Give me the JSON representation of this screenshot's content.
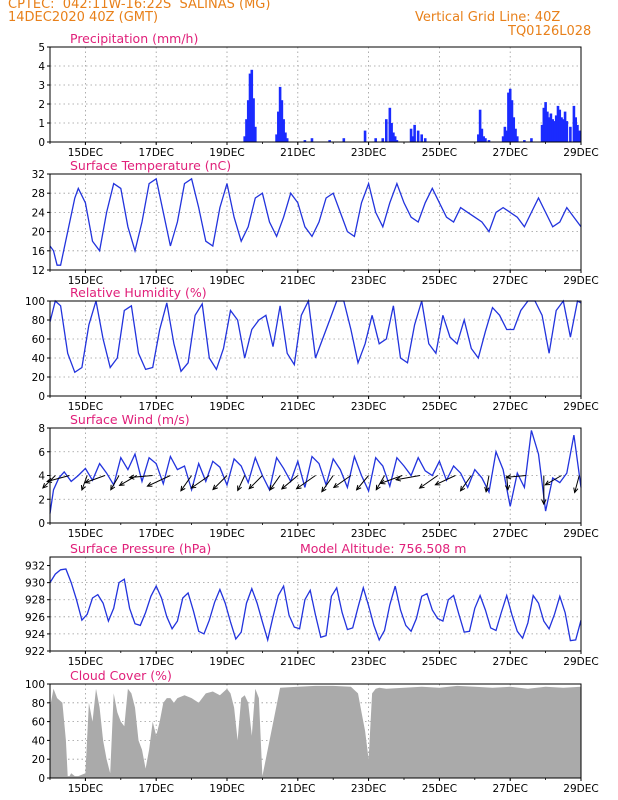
{
  "header": {
    "station": "CPTEC:  042:11W-16:22S  SALINAS (MG)",
    "date": "14DEC2020 40Z (GMT)",
    "grid_note": "Vertical Grid Line: 40Z",
    "model_id": "TQ0126L028"
  },
  "colors": {
    "line": "#2233dd",
    "bars": "#1a2bff",
    "cloud": "#aaaaaa",
    "title": "#e0207a",
    "header": "#e8801a"
  },
  "x_ticks": [
    "15DEC",
    "17DEC",
    "19DEC",
    "21DEC",
    "23DEC",
    "25DEC",
    "27DEC",
    "29DEC"
  ],
  "chart_data": [
    {
      "id": "precip",
      "type": "bar",
      "title": "Precipitation (mm/h)",
      "ylim": [
        0,
        5
      ],
      "yticks": [
        "0",
        "1",
        "2",
        "3",
        "4",
        "5"
      ],
      "xlim": [
        14,
        29
      ],
      "x": [
        19.5,
        19.55,
        19.6,
        19.65,
        19.7,
        19.75,
        19.8,
        20.4,
        20.45,
        20.5,
        20.55,
        20.6,
        20.65,
        20.7,
        21.2,
        21.4,
        21.9,
        22.3,
        22.9,
        23.2,
        23.4,
        23.5,
        23.6,
        23.65,
        23.7,
        23.75,
        23.8,
        24.2,
        24.25,
        24.3,
        24.4,
        24.5,
        24.6,
        26.1,
        26.15,
        26.2,
        26.25,
        26.3,
        26.4,
        26.8,
        26.85,
        26.9,
        26.95,
        27.0,
        27.05,
        27.1,
        27.15,
        27.2,
        27.4,
        27.6,
        27.9,
        27.95,
        28.0,
        28.05,
        28.1,
        28.15,
        28.2,
        28.25,
        28.3,
        28.35,
        28.4,
        28.45,
        28.5,
        28.55,
        28.6,
        28.7,
        28.8,
        28.85,
        28.9,
        28.95
      ],
      "values": [
        0.3,
        1.2,
        2.2,
        3.6,
        3.8,
        2.3,
        0.8,
        0.4,
        1.6,
        2.9,
        2.2,
        1.2,
        0.5,
        0.2,
        0.1,
        0.2,
        0.1,
        0.2,
        0.6,
        0.2,
        0.2,
        1.2,
        1.8,
        1.0,
        0.5,
        0.3,
        0.1,
        0.7,
        0.3,
        0.9,
        0.6,
        0.4,
        0.2,
        0.4,
        1.7,
        0.7,
        0.3,
        0.2,
        0.1,
        0.3,
        0.8,
        0.6,
        2.6,
        2.8,
        2.2,
        1.3,
        0.7,
        0.3,
        0.1,
        0.2,
        0.9,
        1.8,
        2.1,
        1.6,
        1.3,
        1.5,
        1.2,
        1.1,
        1.4,
        1.9,
        1.7,
        1.3,
        1.2,
        1.6,
        1.1,
        0.8,
        1.9,
        1.3,
        0.9,
        0.6
      ]
    },
    {
      "id": "temp",
      "type": "line",
      "title": "Surface Temperature (nC)",
      "ylim": [
        12,
        32
      ],
      "yticks": [
        "12",
        "16",
        "20",
        "24",
        "28",
        "32"
      ],
      "xlim": [
        14,
        29
      ],
      "x": [
        14.0,
        14.1,
        14.2,
        14.3,
        14.5,
        14.7,
        14.8,
        15.0,
        15.2,
        15.4,
        15.6,
        15.8,
        16.0,
        16.2,
        16.4,
        16.6,
        16.8,
        17.0,
        17.2,
        17.4,
        17.6,
        17.8,
        18.0,
        18.2,
        18.4,
        18.6,
        18.8,
        19.0,
        19.2,
        19.4,
        19.6,
        19.8,
        20.0,
        20.2,
        20.4,
        20.6,
        20.8,
        21.0,
        21.2,
        21.4,
        21.6,
        21.8,
        22.0,
        22.2,
        22.4,
        22.6,
        22.8,
        23.0,
        23.2,
        23.4,
        23.6,
        23.8,
        24.0,
        24.2,
        24.4,
        24.6,
        24.8,
        25.0,
        25.2,
        25.4,
        25.6,
        25.8,
        26.0,
        26.2,
        26.4,
        26.6,
        26.8,
        27.0,
        27.2,
        27.4,
        27.6,
        27.8,
        28.0,
        28.2,
        28.4,
        28.6,
        28.8,
        29.0
      ],
      "values": [
        17,
        16,
        13,
        13,
        20,
        27,
        29,
        26,
        18,
        16,
        24,
        30,
        29,
        21,
        16,
        22,
        30,
        31,
        24,
        17,
        22,
        30,
        31,
        25,
        18,
        17,
        25,
        30,
        23,
        18,
        21,
        27,
        28,
        22,
        19,
        23,
        28,
        26,
        21,
        19,
        22,
        27,
        28,
        24,
        20,
        19,
        26,
        30,
        24,
        21,
        26,
        30,
        26,
        23,
        22,
        26,
        29,
        26,
        23,
        22,
        25,
        24,
        23,
        22,
        20,
        24,
        25,
        24,
        23,
        21,
        24,
        27,
        24,
        21,
        22,
        25,
        23,
        21
      ]
    },
    {
      "id": "rh",
      "type": "line",
      "title": "Relative Humidity (%)",
      "ylim": [
        0,
        100
      ],
      "yticks": [
        "0",
        "20",
        "40",
        "60",
        "80",
        "100"
      ],
      "xlim": [
        14,
        29
      ],
      "x": [
        14.0,
        14.15,
        14.3,
        14.5,
        14.7,
        14.9,
        15.1,
        15.3,
        15.5,
        15.7,
        15.9,
        16.1,
        16.3,
        16.5,
        16.7,
        16.9,
        17.1,
        17.3,
        17.5,
        17.7,
        17.9,
        18.1,
        18.3,
        18.5,
        18.7,
        18.9,
        19.1,
        19.3,
        19.5,
        19.7,
        19.9,
        20.1,
        20.3,
        20.5,
        20.7,
        20.9,
        21.1,
        21.3,
        21.5,
        21.7,
        21.9,
        22.1,
        22.3,
        22.5,
        22.7,
        22.9,
        23.1,
        23.3,
        23.5,
        23.7,
        23.9,
        24.1,
        24.3,
        24.5,
        24.7,
        24.9,
        25.1,
        25.3,
        25.5,
        25.7,
        25.9,
        26.1,
        26.3,
        26.5,
        26.7,
        26.9,
        27.1,
        27.3,
        27.5,
        27.7,
        27.9,
        28.1,
        28.3,
        28.5,
        28.7,
        28.9,
        29.0
      ],
      "values": [
        78,
        100,
        95,
        45,
        25,
        30,
        75,
        100,
        60,
        30,
        40,
        90,
        95,
        45,
        28,
        30,
        70,
        98,
        55,
        26,
        35,
        85,
        97,
        40,
        28,
        50,
        90,
        80,
        40,
        70,
        80,
        85,
        52,
        95,
        45,
        33,
        85,
        100,
        40,
        60,
        80,
        100,
        100,
        70,
        35,
        55,
        85,
        55,
        60,
        95,
        40,
        35,
        75,
        100,
        55,
        45,
        85,
        62,
        55,
        80,
        50,
        40,
        68,
        93,
        85,
        70,
        70,
        90,
        100,
        100,
        85,
        45,
        90,
        100,
        62,
        100,
        98
      ]
    },
    {
      "id": "wind",
      "type": "line",
      "title": "Surface Wind (m/s)",
      "ylim": [
        0,
        8
      ],
      "yticks": [
        "0",
        "2",
        "4",
        "6",
        "8"
      ],
      "xlim": [
        14,
        29
      ],
      "x": [
        14.0,
        14.1,
        14.25,
        14.4,
        14.6,
        14.8,
        15.0,
        15.2,
        15.4,
        15.6,
        15.8,
        16.0,
        16.2,
        16.4,
        16.6,
        16.8,
        17.0,
        17.2,
        17.4,
        17.6,
        17.8,
        18.0,
        18.2,
        18.4,
        18.6,
        18.8,
        19.0,
        19.2,
        19.4,
        19.6,
        19.8,
        20.0,
        20.2,
        20.4,
        20.6,
        20.8,
        21.0,
        21.2,
        21.4,
        21.6,
        21.8,
        22.0,
        22.2,
        22.4,
        22.6,
        22.8,
        23.0,
        23.2,
        23.4,
        23.6,
        23.8,
        24.0,
        24.2,
        24.4,
        24.6,
        24.8,
        25.0,
        25.2,
        25.4,
        25.6,
        25.8,
        26.0,
        26.2,
        26.4,
        26.6,
        26.8,
        27.0,
        27.2,
        27.4,
        27.6,
        27.8,
        28.0,
        28.2,
        28.4,
        28.6,
        28.8,
        29.0
      ],
      "values": [
        0.8,
        2.8,
        3.8,
        4.3,
        3.5,
        4.0,
        4.6,
        3.6,
        5.0,
        4.2,
        3.2,
        5.5,
        4.5,
        5.8,
        3.5,
        5.5,
        5.0,
        3.3,
        5.6,
        4.5,
        4.8,
        2.8,
        5.0,
        3.5,
        5.2,
        4.7,
        3.2,
        5.4,
        4.8,
        3.4,
        5.5,
        4.0,
        2.8,
        5.5,
        4.6,
        3.5,
        5.2,
        3.0,
        5.6,
        5.0,
        3.2,
        5.4,
        4.5,
        3.0,
        5.6,
        4.0,
        2.7,
        5.5,
        4.8,
        3.1,
        5.5,
        4.8,
        4.0,
        5.5,
        4.4,
        4.0,
        5.2,
        3.6,
        4.8,
        4.2,
        3.0,
        4.5,
        3.8,
        2.6,
        6.0,
        4.5,
        1.4,
        4.2,
        3.0,
        7.8,
        5.8,
        1.0,
        3.8,
        3.4,
        4.2,
        7.4,
        3.0
      ],
      "arrows": [
        {
          "x": 14.15,
          "deg": 225,
          "speed": 3.2
        },
        {
          "x": 14.55,
          "deg": 255,
          "speed": 4.2
        },
        {
          "x": 15.05,
          "deg": 200,
          "speed": 2.8
        },
        {
          "x": 15.55,
          "deg": 250,
          "speed": 3.8
        },
        {
          "x": 15.95,
          "deg": 210,
          "speed": 3.0
        },
        {
          "x": 16.45,
          "deg": 240,
          "speed": 3.6
        },
        {
          "x": 16.9,
          "deg": 265,
          "speed": 4.2
        },
        {
          "x": 17.4,
          "deg": 245,
          "speed": 4.6
        },
        {
          "x": 18.0,
          "deg": 215,
          "speed": 3.4
        },
        {
          "x": 18.5,
          "deg": 235,
          "speed": 4.0
        },
        {
          "x": 19.0,
          "deg": 225,
          "speed": 3.6
        },
        {
          "x": 19.5,
          "deg": 205,
          "speed": 3.0
        },
        {
          "x": 20.0,
          "deg": 225,
          "speed": 3.4
        },
        {
          "x": 20.5,
          "deg": 215,
          "speed": 3.2
        },
        {
          "x": 21.0,
          "deg": 230,
          "speed": 3.8
        },
        {
          "x": 21.5,
          "deg": 235,
          "speed": 4.2
        },
        {
          "x": 22.0,
          "deg": 215,
          "speed": 3.6
        },
        {
          "x": 22.5,
          "deg": 235,
          "speed": 3.8
        },
        {
          "x": 23.0,
          "deg": 220,
          "speed": 3.4
        },
        {
          "x": 23.45,
          "deg": 210,
          "speed": 3.0
        },
        {
          "x": 23.95,
          "deg": 250,
          "speed": 4.2
        },
        {
          "x": 24.45,
          "deg": 260,
          "speed": 4.4
        },
        {
          "x": 24.95,
          "deg": 235,
          "speed": 4.0
        },
        {
          "x": 25.45,
          "deg": 245,
          "speed": 4.0
        },
        {
          "x": 25.9,
          "deg": 215,
          "speed": 3.4
        },
        {
          "x": 26.4,
          "deg": 190,
          "speed": 3.0
        },
        {
          "x": 26.9,
          "deg": 175,
          "speed": 2.6
        },
        {
          "x": 27.45,
          "deg": 265,
          "speed": 3.6
        },
        {
          "x": 27.95,
          "deg": 180,
          "speed": 5.2
        },
        {
          "x": 28.45,
          "deg": 240,
          "speed": 3.4
        },
        {
          "x": 28.95,
          "deg": 195,
          "speed": 3.2
        }
      ]
    },
    {
      "id": "press",
      "type": "line",
      "title": "Surface Pressure (hPa)",
      "subtitle": "Model Altitude: 756.508 m",
      "ylim": [
        922,
        933
      ],
      "yticks": [
        "922",
        "924",
        "926",
        "928",
        "930",
        "932"
      ],
      "xlim": [
        14,
        29
      ],
      "x": [
        14.0,
        14.15,
        14.3,
        14.45,
        14.6,
        14.75,
        14.9,
        15.05,
        15.2,
        15.35,
        15.5,
        15.65,
        15.8,
        15.95,
        16.1,
        16.25,
        16.4,
        16.55,
        16.7,
        16.85,
        17.0,
        17.15,
        17.3,
        17.45,
        17.6,
        17.75,
        17.9,
        18.05,
        18.2,
        18.35,
        18.5,
        18.65,
        18.8,
        18.95,
        19.1,
        19.25,
        19.4,
        19.55,
        19.7,
        19.85,
        20.0,
        20.15,
        20.3,
        20.45,
        20.6,
        20.75,
        20.9,
        21.05,
        21.2,
        21.35,
        21.5,
        21.65,
        21.8,
        21.95,
        22.1,
        22.25,
        22.4,
        22.55,
        22.7,
        22.85,
        23.0,
        23.15,
        23.3,
        23.45,
        23.6,
        23.75,
        23.9,
        24.05,
        24.2,
        24.35,
        24.5,
        24.65,
        24.8,
        24.95,
        25.1,
        25.25,
        25.4,
        25.55,
        25.7,
        25.85,
        26.0,
        26.15,
        26.3,
        26.45,
        26.6,
        26.75,
        26.9,
        27.05,
        27.2,
        27.35,
        27.5,
        27.65,
        27.8,
        27.95,
        28.1,
        28.25,
        28.4,
        28.55,
        28.7,
        28.85,
        29.0
      ],
      "values": [
        930,
        931,
        931.5,
        931.6,
        930,
        928,
        925.6,
        926.3,
        928.2,
        928.6,
        927.6,
        925.5,
        927,
        930,
        930.4,
        927,
        925.2,
        925,
        926.5,
        928.4,
        929.6,
        928.2,
        926,
        924.6,
        925.5,
        928.2,
        928.8,
        926.7,
        924.3,
        924,
        925.6,
        927.7,
        929.2,
        927.6,
        925.4,
        923.4,
        924.2,
        927.6,
        929.3,
        927.6,
        925.4,
        923.3,
        926,
        928.5,
        929.6,
        926.2,
        924.8,
        924.6,
        928,
        929.1,
        926.2,
        923.6,
        923.8,
        928.4,
        929.4,
        926.5,
        924.5,
        924.7,
        927.1,
        929.4,
        927.3,
        925,
        923.3,
        924.4,
        927.4,
        929.6,
        926.8,
        925,
        924.3,
        925.8,
        928.4,
        928.7,
        926.8,
        925.8,
        925.5,
        928,
        928.5,
        926.3,
        924.2,
        924.3,
        927,
        928.5,
        926.8,
        924.7,
        924.4,
        926.5,
        928.5,
        926.2,
        924.3,
        923.5,
        925.3,
        928.5,
        927.6,
        925.5,
        924.6,
        926.3,
        928.4,
        926.5,
        923.2,
        923.3,
        925.6
      ]
    },
    {
      "id": "cloud",
      "type": "area",
      "title": "Cloud Cover (%)",
      "ylim": [
        0,
        100
      ],
      "yticks": [
        "0",
        "20",
        "40",
        "60",
        "80",
        "100"
      ],
      "xlim": [
        14,
        29
      ],
      "x": [
        14.0,
        14.1,
        14.2,
        14.35,
        14.45,
        14.5,
        14.55,
        14.6,
        14.7,
        14.8,
        15.0,
        15.1,
        15.2,
        15.3,
        15.4,
        15.5,
        15.6,
        15.7,
        15.8,
        15.9,
        16.0,
        16.1,
        16.2,
        16.3,
        16.4,
        16.5,
        16.6,
        16.7,
        16.8,
        16.9,
        17.0,
        17.1,
        17.2,
        17.3,
        17.4,
        17.5,
        17.6,
        17.8,
        18.0,
        18.2,
        18.4,
        18.6,
        18.8,
        19.0,
        19.1,
        19.2,
        19.3,
        19.4,
        19.5,
        19.6,
        19.7,
        19.8,
        19.9,
        20.0,
        20.5,
        21.0,
        21.5,
        22.0,
        22.5,
        22.7,
        22.8,
        22.9,
        23.0,
        23.1,
        23.2,
        23.3,
        23.5,
        24.0,
        24.5,
        25.0,
        25.5,
        26.0,
        26.5,
        27.0,
        27.5,
        28.0,
        28.5,
        29.0
      ],
      "values": [
        75,
        95,
        85,
        80,
        40,
        2,
        2,
        5,
        2,
        2,
        5,
        80,
        60,
        95,
        75,
        40,
        20,
        5,
        90,
        70,
        60,
        55,
        95,
        90,
        75,
        40,
        30,
        10,
        30,
        60,
        45,
        60,
        80,
        85,
        85,
        80,
        85,
        88,
        85,
        80,
        90,
        92,
        88,
        95,
        90,
        75,
        40,
        85,
        88,
        80,
        45,
        95,
        85,
        2,
        96,
        97,
        98,
        98,
        97,
        90,
        70,
        50,
        20,
        90,
        95,
        96,
        95,
        96,
        97,
        96,
        98,
        97,
        96,
        97,
        95,
        97,
        96,
        97
      ]
    }
  ]
}
